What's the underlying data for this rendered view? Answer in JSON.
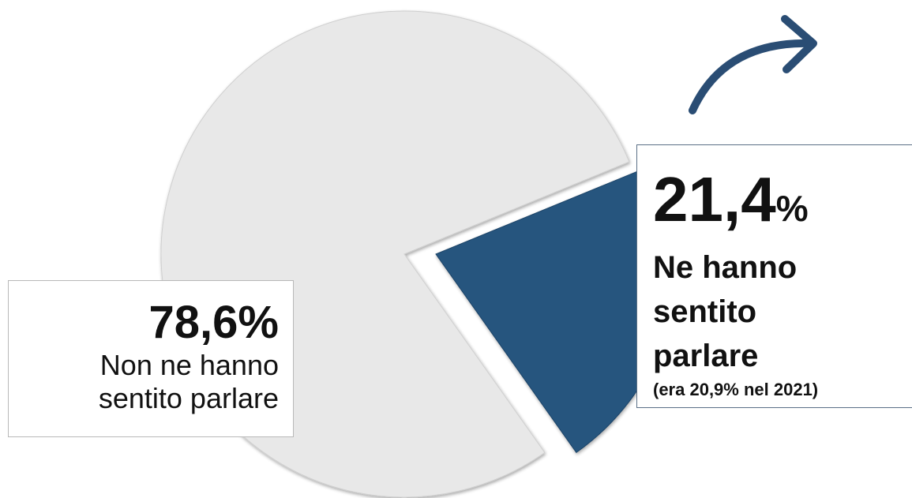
{
  "chart_data": {
    "type": "pie",
    "title": "",
    "slices": [
      {
        "name": "Non ne hanno sentito parlare",
        "value": 78.6,
        "label": "78,6%"
      },
      {
        "name": "Ne hanno sentito parlare",
        "value": 21.4,
        "label_number": "21,4",
        "label_unit": "%",
        "note": "(era 20,9% nel 2021)"
      }
    ],
    "legend": "none",
    "trend": "up"
  },
  "colors": {
    "large_slice": "#e8e8e8",
    "small_slice": "#26547e",
    "arrow": "#2a4d74"
  },
  "icons": {
    "trend": "curved-arrow-right-icon"
  }
}
